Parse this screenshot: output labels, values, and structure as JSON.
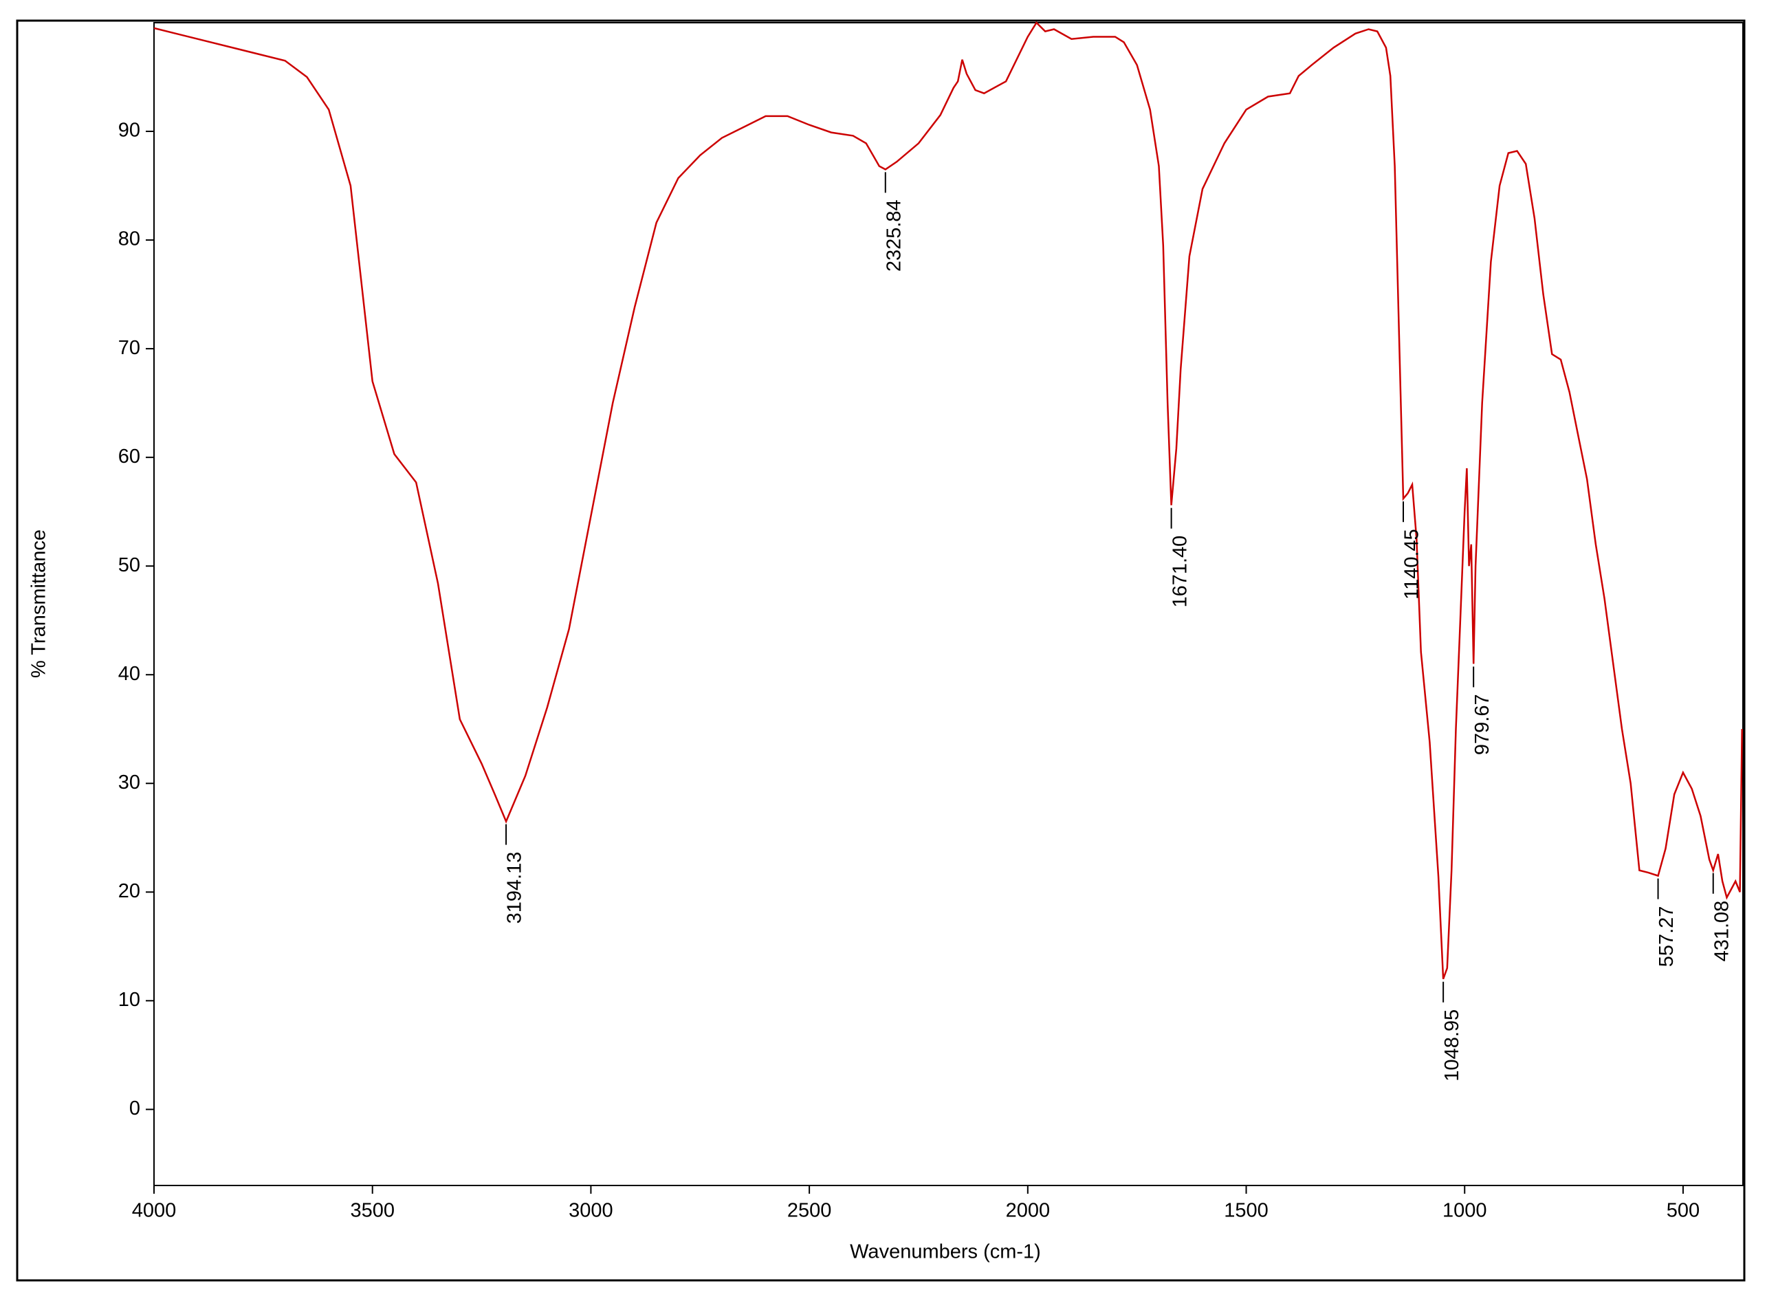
{
  "chart_data": {
    "type": "line",
    "xlabel": "Wavenumbers (cm-1)",
    "ylabel": "% Transmittance",
    "xlim": [
      4000,
      363
    ],
    "ylim": [
      -7,
      100
    ],
    "xticks": [
      4000,
      3500,
      3000,
      2500,
      2000,
      1500,
      1000,
      500
    ],
    "yticks": [
      0,
      10,
      20,
      30,
      40,
      50,
      60,
      70,
      80,
      90
    ],
    "color": "#cc0000",
    "x": [
      4000,
      3900,
      3800,
      3700,
      3650,
      3600,
      3550,
      3500,
      3450,
      3400,
      3350,
      3300,
      3250,
      3220,
      3194.13,
      3150,
      3100,
      3050,
      3000,
      2950,
      2900,
      2850,
      2800,
      2750,
      2700,
      2650,
      2600,
      2550,
      2500,
      2450,
      2400,
      2370,
      2340,
      2325.84,
      2300,
      2250,
      2200,
      2170,
      2160,
      2150,
      2140,
      2120,
      2100,
      2050,
      2000,
      1980,
      1960,
      1940,
      1900,
      1850,
      1800,
      1780,
      1750,
      1720,
      1700,
      1690,
      1680,
      1671.4,
      1660,
      1650,
      1630,
      1600,
      1550,
      1500,
      1450,
      1400,
      1380,
      1350,
      1300,
      1250,
      1220,
      1200,
      1180,
      1170,
      1160,
      1150,
      1140.45,
      1130,
      1120,
      1110,
      1100,
      1080,
      1060,
      1048.95,
      1040,
      1030,
      1020,
      1010,
      1000,
      995,
      990,
      985,
      979.67,
      975,
      960,
      940,
      920,
      900,
      880,
      860,
      840,
      820,
      800,
      780,
      760,
      740,
      720,
      700,
      680,
      660,
      640,
      620,
      600,
      580,
      557.27,
      540,
      520,
      500,
      480,
      460,
      440,
      431.08,
      420,
      410,
      400,
      380,
      370,
      365
    ],
    "values": [
      99.5,
      98.5,
      97.5,
      96.5,
      95,
      92,
      85,
      67,
      60.3,
      57.7,
      48.4,
      35.9,
      31.8,
      29,
      26.5,
      30.7,
      37,
      44.2,
      54.6,
      65,
      73.8,
      81.6,
      85.7,
      87.8,
      89.4,
      90.4,
      91.4,
      91.4,
      90.6,
      89.9,
      89.6,
      88.9,
      86.8,
      86.5,
      87.2,
      88.9,
      91.5,
      94,
      94.6,
      96.6,
      95.3,
      93.8,
      93.5,
      94.6,
      98.7,
      100,
      99.2,
      99.4,
      98.5,
      98.7,
      98.7,
      98.2,
      96.1,
      92,
      86.8,
      79.5,
      65,
      55.6,
      60.8,
      68.1,
      78.5,
      84.7,
      88.9,
      92,
      93.2,
      93.5,
      95.1,
      96.1,
      97.7,
      99,
      99.4,
      99.2,
      97.7,
      95.1,
      86.8,
      71.2,
      56.2,
      56.7,
      57.5,
      52.5,
      42.1,
      33.8,
      21.4,
      12,
      13,
      22,
      35,
      45,
      55,
      59,
      50,
      52,
      41,
      50,
      65,
      78,
      85,
      88,
      88.2,
      87,
      82,
      75,
      69.5,
      69,
      66,
      62,
      58,
      52,
      47,
      41,
      35,
      30,
      22,
      21.8,
      21.5,
      24,
      29,
      31,
      29.5,
      27,
      23,
      22,
      23.5,
      21,
      19.5,
      21,
      20,
      35
    ],
    "peaks": [
      {
        "value": 3194.13,
        "label": "3194.13"
      },
      {
        "value": 2325.84,
        "label": "2325.84"
      },
      {
        "value": 1671.4,
        "label": "1671.40"
      },
      {
        "value": 1140.45,
        "label": "1140.45"
      },
      {
        "value": 1048.95,
        "label": "1048.95"
      },
      {
        "value": 979.67,
        "label": "979.67"
      },
      {
        "value": 557.27,
        "label": "557.27"
      },
      {
        "value": 431.08,
        "label": "431.08"
      }
    ]
  }
}
